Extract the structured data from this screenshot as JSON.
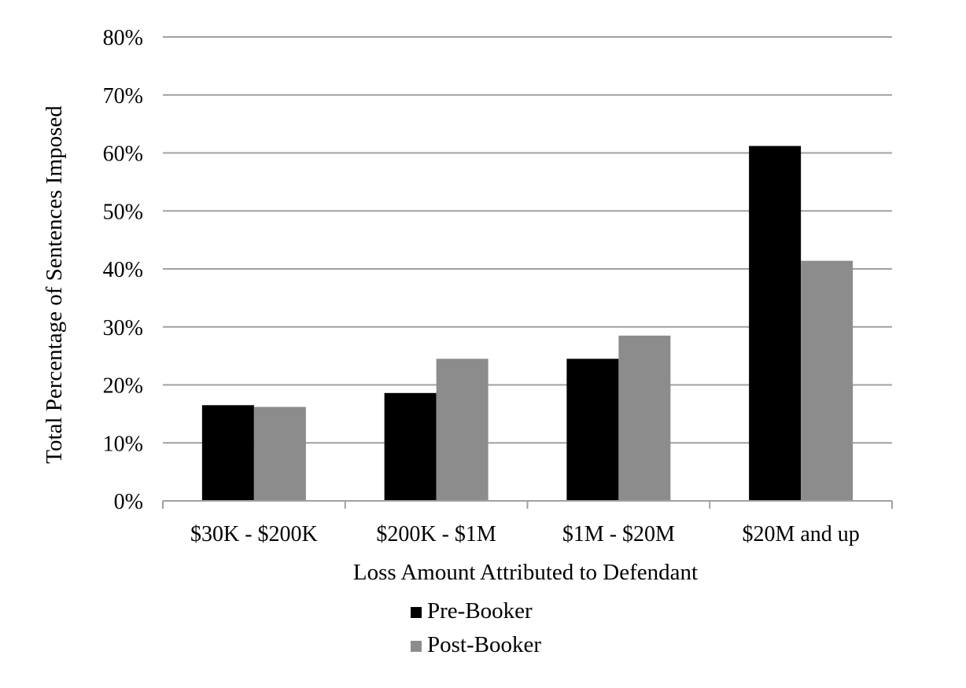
{
  "chart_data": {
    "type": "bar",
    "title": "",
    "xlabel": "Loss Amount Attributed to Defendant",
    "ylabel": "Total Percentage of Sentences Imposed",
    "categories": [
      "$30K - $200K",
      "$200K - $1M",
      "$1M - $20M",
      "$20M and up"
    ],
    "series": [
      {
        "name": "Pre-Booker",
        "color": "#000000",
        "values": [
          16.5,
          18.6,
          24.5,
          61.2
        ]
      },
      {
        "name": "Post-Booker",
        "color": "#8c8c8c",
        "values": [
          16.2,
          24.5,
          28.5,
          41.4
        ]
      }
    ],
    "ylim": [
      0,
      80
    ],
    "yticks": [
      0,
      10,
      20,
      30,
      40,
      50,
      60,
      70,
      80
    ],
    "ytick_labels": [
      "0%",
      "10%",
      "20%",
      "30%",
      "40%",
      "50%",
      "60%",
      "70%",
      "80%"
    ],
    "grid": true,
    "legend_position": "bottom"
  }
}
